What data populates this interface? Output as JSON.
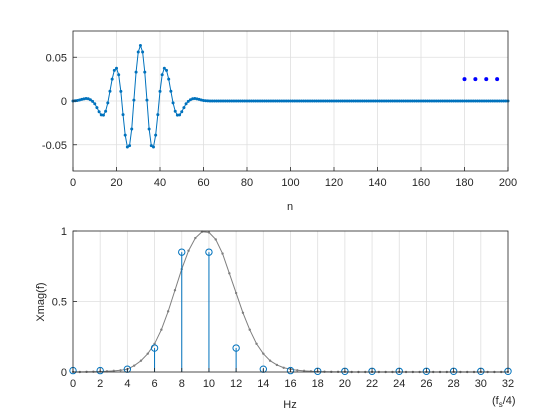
{
  "chart_data": [
    {
      "type": "line",
      "xlabel": "n",
      "ylabel": "",
      "xlim": [
        0,
        200
      ],
      "ylim": [
        -0.08,
        0.08
      ],
      "xticks": [
        0,
        20,
        40,
        60,
        80,
        100,
        120,
        140,
        160,
        180,
        200
      ],
      "xtick_labels": [
        "0",
        "20",
        "40",
        "60",
        "80",
        "100",
        "120",
        "140",
        "160",
        "180",
        "200"
      ],
      "yticks": [
        -0.05,
        0,
        0.05
      ],
      "ytick_labels": [
        "-0.05",
        "0",
        "0.05"
      ],
      "grid": true,
      "marker": "dot",
      "color": "#0072BD",
      "annotation": {
        "text_equivalent": "ellipsis dots",
        "x": [
          180,
          185,
          190,
          195
        ],
        "y": [
          0.025,
          0.025,
          0.025,
          0.025
        ],
        "color": "#0000FF"
      },
      "series": [
        {
          "x": [
            0,
            1,
            2,
            3,
            4,
            5,
            6,
            7,
            8,
            9,
            10,
            11,
            12,
            13,
            14,
            15,
            16,
            17,
            18,
            19,
            20,
            21,
            22,
            23,
            24,
            25,
            26,
            27,
            28,
            29,
            30,
            31,
            32,
            33,
            34,
            35,
            36,
            37,
            38,
            39,
            40,
            41,
            42,
            43,
            44,
            45,
            46,
            47,
            48,
            49,
            50,
            51,
            52,
            53,
            54,
            55,
            56,
            57,
            58,
            59,
            60,
            61,
            62,
            63,
            64,
            65,
            66,
            67,
            68,
            69,
            70,
            200
          ],
          "y": [
            0,
            0.0003,
            0.0006,
            0.0011,
            0.0018,
            0.0024,
            0.0028,
            0.0026,
            0.0015,
            -0.0004,
            -0.0031,
            -0.0075,
            -0.0123,
            -0.0159,
            -0.0162,
            -0.0117,
            -0.0021,
            0.0112,
            0.025,
            0.035,
            0.0375,
            0.03,
            0.011,
            -0.0155,
            -0.039,
            -0.0525,
            -0.051,
            -0.032,
            0.001,
            0.033,
            0.056,
            0.0635,
            0.056,
            0.033,
            0.001,
            -0.032,
            -0.051,
            -0.0525,
            -0.039,
            -0.0155,
            0.011,
            0.03,
            0.0375,
            0.035,
            0.025,
            0.0112,
            -0.0021,
            -0.0117,
            -0.0162,
            -0.0159,
            -0.0123,
            -0.0075,
            -0.0031,
            -0.0004,
            0.0015,
            0.0026,
            0.0028,
            0.0024,
            0.0018,
            0.0011,
            0.0006,
            0.0003,
            0.0001,
            0,
            0,
            0,
            0,
            0,
            0,
            0,
            0,
            0
          ]
        }
      ]
    },
    {
      "type": "line",
      "xlabel": "Hz",
      "xlabel_suffix_parts": [
        "(f",
        "s",
        "/4)"
      ],
      "ylabel": "Xmag(f)",
      "xlim": [
        0,
        32
      ],
      "ylim": [
        0,
        1
      ],
      "xticks": [
        0,
        2,
        4,
        6,
        8,
        10,
        12,
        14,
        16,
        18,
        20,
        22,
        24,
        26,
        28,
        30,
        32
      ],
      "xtick_labels": [
        "0",
        "2",
        "4",
        "6",
        "8",
        "10",
        "12",
        "14",
        "16",
        "18",
        "20",
        "22",
        "24",
        "26",
        "28",
        "30",
        "32"
      ],
      "yticks": [
        0,
        0.5,
        1
      ],
      "ytick_labels": [
        "0",
        "0.5",
        "1"
      ],
      "grid": true,
      "continuous_color": "#7F7F7F",
      "stem_color": "#0072BD",
      "continuous": {
        "x": [
          0,
          0.5,
          1,
          1.5,
          2,
          2.5,
          3,
          3.5,
          4,
          4.5,
          5,
          5.5,
          6,
          6.5,
          7,
          7.5,
          8,
          8.5,
          9,
          9.5,
          10,
          10.5,
          11,
          11.5,
          12,
          12.5,
          13,
          13.5,
          14,
          14.5,
          15,
          15.5,
          16,
          16.5,
          17,
          17.5,
          18,
          18.5,
          19,
          19.5,
          20,
          20.5,
          21,
          21.5,
          22,
          22.5,
          23,
          23.5,
          24,
          24.5,
          25,
          25.5,
          26,
          26.5,
          27,
          27.5,
          28,
          28.5,
          29,
          29.5,
          30,
          30.5,
          31,
          31.5,
          32
        ],
        "y": [
          0,
          0,
          0.001,
          0.002,
          0.003,
          0.005,
          0.008,
          0.012,
          0.02,
          0.045,
          0.08,
          0.13,
          0.2,
          0.3,
          0.43,
          0.58,
          0.73,
          0.86,
          0.95,
          0.995,
          0.99,
          0.94,
          0.84,
          0.7,
          0.56,
          0.42,
          0.3,
          0.2,
          0.13,
          0.08,
          0.05,
          0.03,
          0.02,
          0.012,
          0.008,
          0.005,
          0.003,
          0.002,
          0.001,
          0.001,
          0.001,
          0,
          0,
          0,
          0,
          0,
          0,
          0,
          0,
          0,
          0,
          0,
          0,
          0,
          0,
          0,
          0,
          0,
          0,
          0,
          0,
          0,
          0,
          0,
          0
        ]
      },
      "stems": {
        "x": [
          0,
          2,
          4,
          6,
          8,
          10,
          12,
          14,
          16,
          18,
          20,
          22,
          24,
          26,
          28,
          30,
          32
        ],
        "y": [
          0.01,
          0.01,
          0.02,
          0.17,
          0.85,
          0.85,
          0.17,
          0.02,
          0.01,
          0.005,
          0.005,
          0.005,
          0.005,
          0.005,
          0.005,
          0.005,
          0.005
        ]
      }
    }
  ]
}
